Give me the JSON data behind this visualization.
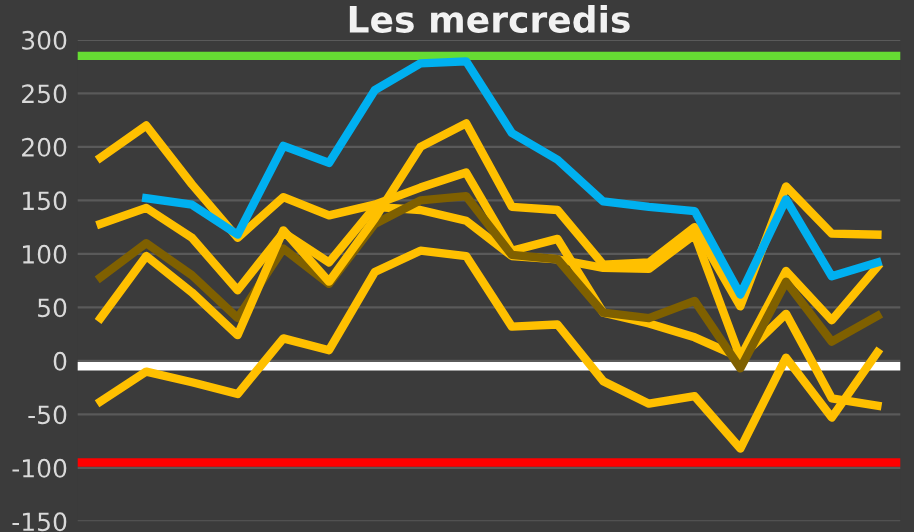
{
  "chart_data": {
    "type": "line",
    "title": "Les mercredis",
    "categories": [
      null,
      null,
      null,
      null,
      null,
      null,
      null,
      null,
      null,
      null,
      null,
      null,
      null,
      null,
      null,
      null,
      null,
      null
    ],
    "series": [
      {
        "color": "#ffc000",
        "values": [
          190,
          220,
          165,
          115,
          153,
          136,
          146,
          162,
          176,
          103,
          114,
          45,
          35,
          22,
          3,
          44,
          -35,
          -42
        ]
      },
      {
        "color": "#ffc000",
        "values": [
          128,
          143,
          115,
          66,
          120,
          92,
          144,
          141,
          131,
          98,
          95,
          87,
          86,
          118,
          3,
          84,
          38,
          88
        ]
      },
      {
        "color": "#7f6000",
        "values": [
          78,
          110,
          80,
          40,
          105,
          72,
          128,
          150,
          154,
          99,
          95,
          45,
          40,
          56,
          -7,
          74,
          18,
          42
        ]
      },
      {
        "color": "#ffc000",
        "values": [
          40,
          98,
          64,
          24,
          122,
          74,
          133,
          200,
          222,
          144,
          141,
          90,
          92,
          125,
          51,
          163,
          119,
          118
        ]
      },
      {
        "color": "#ffc000",
        "values": [
          -38,
          -10,
          -20,
          -31,
          21,
          10,
          83,
          103,
          98,
          32,
          34,
          -19,
          -40,
          -33,
          -82,
          3,
          -53,
          8
        ]
      },
      {
        "color": "#00b0f0",
        "values": [
          null,
          152,
          146,
          118,
          201,
          185,
          253,
          278,
          280,
          213,
          188,
          149,
          144,
          140,
          62,
          151,
          79,
          92
        ]
      }
    ],
    "ref_lines": [
      {
        "axis": "y",
        "value": 285,
        "color": "#66dd33"
      },
      {
        "axis": "y",
        "value": -5,
        "color": "#ffffff"
      },
      {
        "axis": "y",
        "value": -95,
        "color": "#ff0000"
      }
    ],
    "ylim": [
      -150,
      300
    ],
    "yticks": [
      -150,
      -100,
      -50,
      0,
      50,
      100,
      150,
      200,
      250,
      300
    ],
    "grid": "y",
    "marker": "none",
    "line_style": "solid",
    "tick_labels": "y"
  }
}
